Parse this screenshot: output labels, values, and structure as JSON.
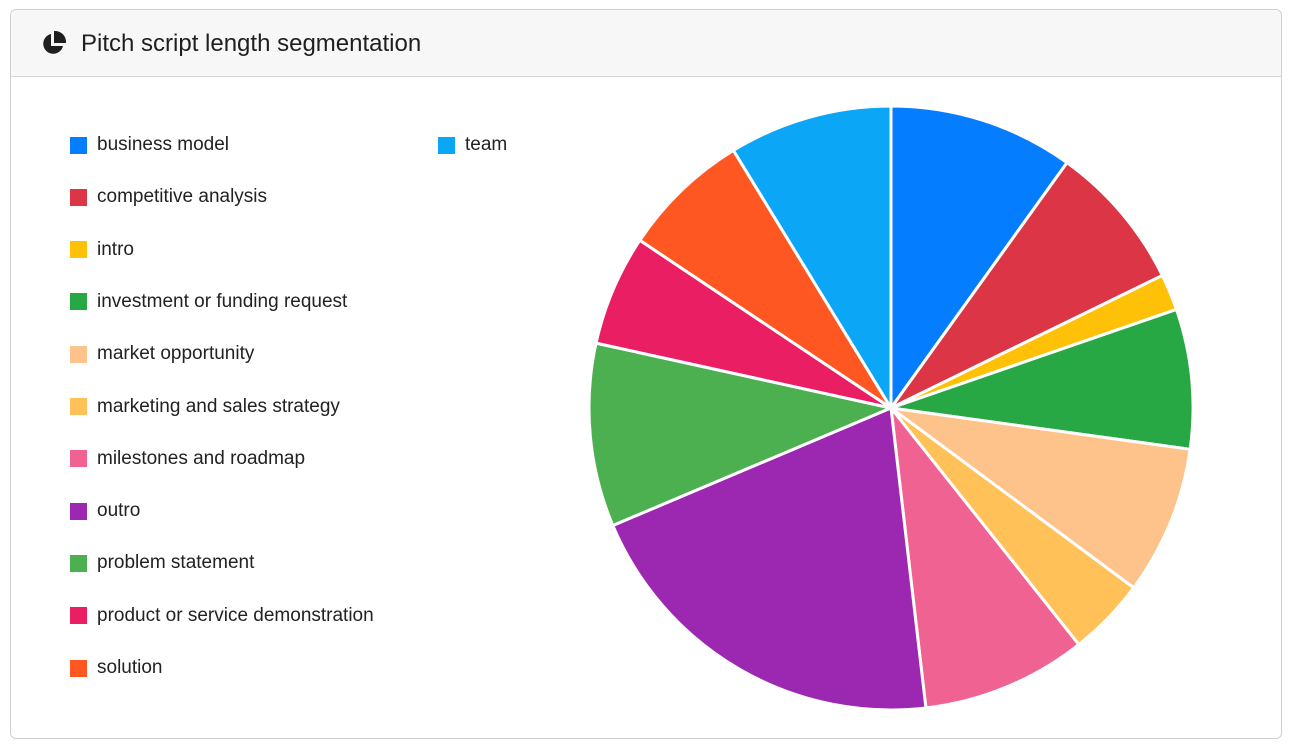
{
  "card": {
    "title": "Pitch script length segmentation",
    "icon": "pie-chart-icon"
  },
  "chart_data": {
    "type": "pie",
    "title": "Pitch script length segmentation",
    "legend_position": "left",
    "start_angle_deg": 0,
    "direction": "clockwise",
    "slices": [
      {
        "label": "business model",
        "value": 10.2,
        "color": "#057DFF"
      },
      {
        "label": "competitive analysis",
        "value": 8.1,
        "color": "#DC3545"
      },
      {
        "label": "intro",
        "value": 2.0,
        "color": "#FFC107"
      },
      {
        "label": "investment or funding request",
        "value": 7.7,
        "color": "#28A745"
      },
      {
        "label": "market opportunity",
        "value": 8.2,
        "color": "#FEC38B"
      },
      {
        "label": "marketing and sales strategy",
        "value": 4.3,
        "color": "#FFC158"
      },
      {
        "label": "milestones and roadmap",
        "value": 9.1,
        "color": "#F06292"
      },
      {
        "label": "outro",
        "value": 21.1,
        "color": "#9C27B0"
      },
      {
        "label": "problem statement",
        "value": 10.1,
        "color": "#4CAF50"
      },
      {
        "label": "product or service demonstration",
        "value": 6.1,
        "color": "#E91E63"
      },
      {
        "label": "solution",
        "value": 7.1,
        "color": "#FF5722"
      },
      {
        "label": "team",
        "value": 9.0,
        "color": "#0BA6F5"
      }
    ]
  }
}
